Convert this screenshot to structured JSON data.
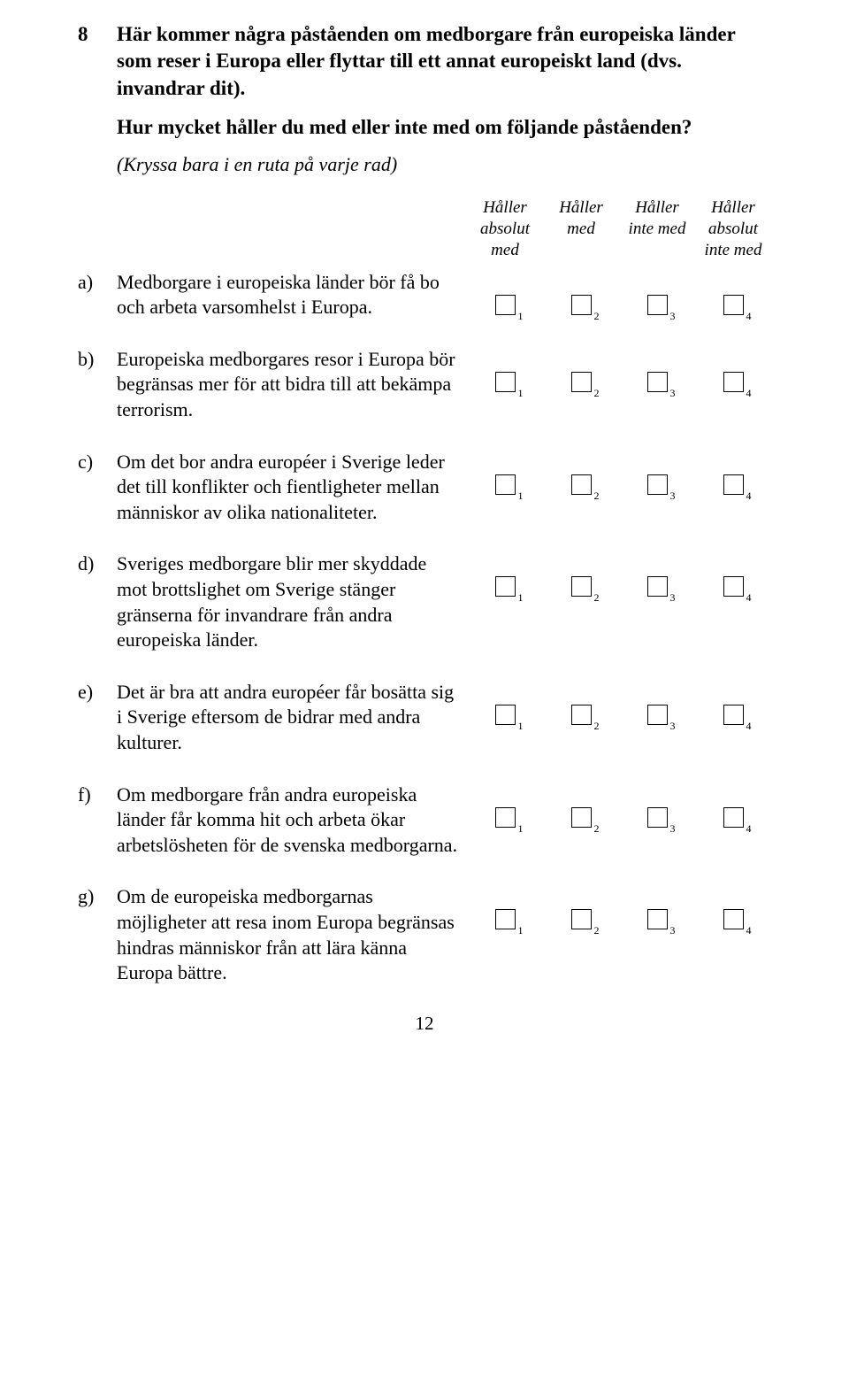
{
  "question": {
    "number": "8",
    "title_line1": "Här kommer några påståenden om medborgare från europeiska länder som reser i Europa eller flyttar till ett annat europeiskt land (dvs. invandrar dit).",
    "title_line2": "Hur mycket håller du med eller inte med om följande påståenden?",
    "instruction": "(Kryssa bara i en ruta på varje rad)"
  },
  "columns": [
    {
      "label": "Håller absolut med"
    },
    {
      "label": "Håller med"
    },
    {
      "label": "Håller inte med"
    },
    {
      "label": "Håller absolut inte med"
    }
  ],
  "checkbox_subs": [
    "1",
    "2",
    "3",
    "4"
  ],
  "items": [
    {
      "letter": "a)",
      "text": "Medborgare i europeiska länder bör få bo och arbeta varsomhelst i Europa."
    },
    {
      "letter": "b)",
      "text": "Europeiska medborgares resor i Europa bör begränsas mer för att bidra till att bekämpa terrorism."
    },
    {
      "letter": "c)",
      "text": "Om det bor andra européer i Sverige leder det till konflikter och fientligheter mellan människor av olika nationaliteter."
    },
    {
      "letter": "d)",
      "text": "Sveriges medborgare blir mer skyddade mot brottslighet om Sverige stänger gränserna för invandrare från andra europeiska länder."
    },
    {
      "letter": "e)",
      "text": "Det är bra att andra européer får bosätta sig i Sverige eftersom de bidrar med andra kulturer."
    },
    {
      "letter": "f)",
      "text": "Om medborgare från andra europeiska länder får komma hit och arbeta ökar arbetslösheten för de svenska medborgarna."
    },
    {
      "letter": "g)",
      "text": "Om de europeiska medborgarnas möjligheter att resa inom Europa begränsas hindras människor från att lära känna Europa bättre."
    }
  ],
  "page_number": "12",
  "colors": {
    "background": "#ffffff",
    "text": "#000000",
    "checkbox_border": "#000000"
  }
}
